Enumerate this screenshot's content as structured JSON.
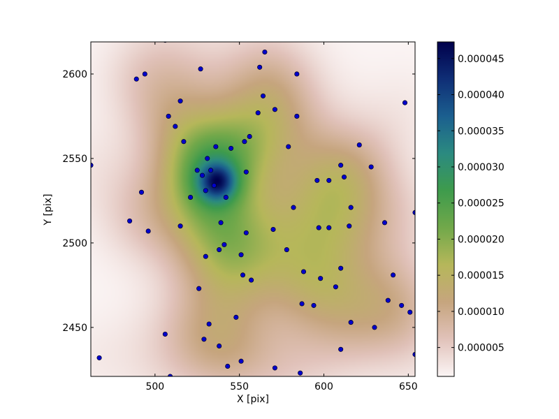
{
  "chart_data": {
    "type": "scatter",
    "xlabel": "X [pix]",
    "ylabel": "Y [pix]",
    "xlim": [
      462,
      654
    ],
    "ylim": [
      2421,
      2619
    ],
    "x_ticks": [
      500,
      550,
      600,
      650
    ],
    "y_ticks": [
      2450,
      2500,
      2550,
      2600
    ],
    "x_tick_labels": [
      "500",
      "550",
      "600",
      "650"
    ],
    "y_tick_labels": [
      "2450",
      "2500",
      "2550",
      "2600"
    ],
    "grid": false,
    "legend": "none",
    "marker_color": "#0000cc",
    "colormap": "gist_earth_r",
    "colorbar": {
      "range": [
        1e-06,
        4.73e-05
      ],
      "ticks": [
        5e-06,
        1e-05,
        1.5e-05,
        2e-05,
        2.5e-05,
        3e-05,
        3.5e-05,
        4e-05,
        4.5e-05
      ],
      "tick_labels": [
        "0.000005",
        "0.000010",
        "0.000015",
        "0.000020",
        "0.000025",
        "0.000030",
        "0.000035",
        "0.000040",
        "0.000045"
      ],
      "colors": [
        "#fbf5f5",
        "#e1c2ba",
        "#c6a57e",
        "#b6b75a",
        "#71a84a",
        "#3e9b4c",
        "#2b8a80",
        "#1b5f8f",
        "#0f2e76",
        "#00004b"
      ]
    },
    "density_peak": [
      537,
      2536
    ],
    "points": [
      [
        462,
        2546
      ],
      [
        467,
        2432
      ],
      [
        485,
        2513
      ],
      [
        489,
        2597
      ],
      [
        492,
        2530
      ],
      [
        494,
        2600
      ],
      [
        496,
        2507
      ],
      [
        506,
        2620
      ],
      [
        506,
        2446
      ],
      [
        508,
        2575
      ],
      [
        509,
        2421
      ],
      [
        512,
        2569
      ],
      [
        515,
        2584
      ],
      [
        515,
        2510
      ],
      [
        517,
        2560
      ],
      [
        521,
        2527
      ],
      [
        525,
        2543
      ],
      [
        526,
        2473
      ],
      [
        527,
        2603
      ],
      [
        528,
        2540
      ],
      [
        529,
        2443
      ],
      [
        530,
        2492
      ],
      [
        530,
        2531
      ],
      [
        531,
        2550
      ],
      [
        532,
        2452
      ],
      [
        533,
        2543
      ],
      [
        535,
        2534
      ],
      [
        536,
        2557
      ],
      [
        538,
        2439
      ],
      [
        538,
        2496
      ],
      [
        539,
        2512
      ],
      [
        541,
        2499
      ],
      [
        542,
        2527
      ],
      [
        543,
        2427
      ],
      [
        545,
        2556
      ],
      [
        548,
        2456
      ],
      [
        551,
        2493
      ],
      [
        551,
        2430
      ],
      [
        552,
        2481
      ],
      [
        553,
        2560
      ],
      [
        554,
        2542
      ],
      [
        554,
        2506
      ],
      [
        556,
        2563
      ],
      [
        557,
        2478
      ],
      [
        561,
        2577
      ],
      [
        562,
        2604
      ],
      [
        564,
        2587
      ],
      [
        565,
        2613
      ],
      [
        570,
        2508
      ],
      [
        571,
        2426
      ],
      [
        571,
        2579
      ],
      [
        578,
        2496
      ],
      [
        579,
        2557
      ],
      [
        582,
        2521
      ],
      [
        584,
        2575
      ],
      [
        584,
        2600
      ],
      [
        586,
        2423
      ],
      [
        587,
        2464
      ],
      [
        588,
        2483
      ],
      [
        594,
        2463
      ],
      [
        596,
        2537
      ],
      [
        597,
        2509
      ],
      [
        598,
        2479
      ],
      [
        603,
        2509
      ],
      [
        603,
        2537
      ],
      [
        607,
        2474
      ],
      [
        610,
        2546
      ],
      [
        610,
        2485
      ],
      [
        610,
        2437
      ],
      [
        612,
        2539
      ],
      [
        615,
        2510
      ],
      [
        616,
        2453
      ],
      [
        616,
        2521
      ],
      [
        621,
        2558
      ],
      [
        628,
        2545
      ],
      [
        630,
        2450
      ],
      [
        636,
        2512
      ],
      [
        638,
        2466
      ],
      [
        641,
        2481
      ],
      [
        646,
        2463
      ],
      [
        648,
        2583
      ],
      [
        651,
        2459
      ],
      [
        654,
        2434
      ],
      [
        654,
        2518
      ]
    ]
  }
}
